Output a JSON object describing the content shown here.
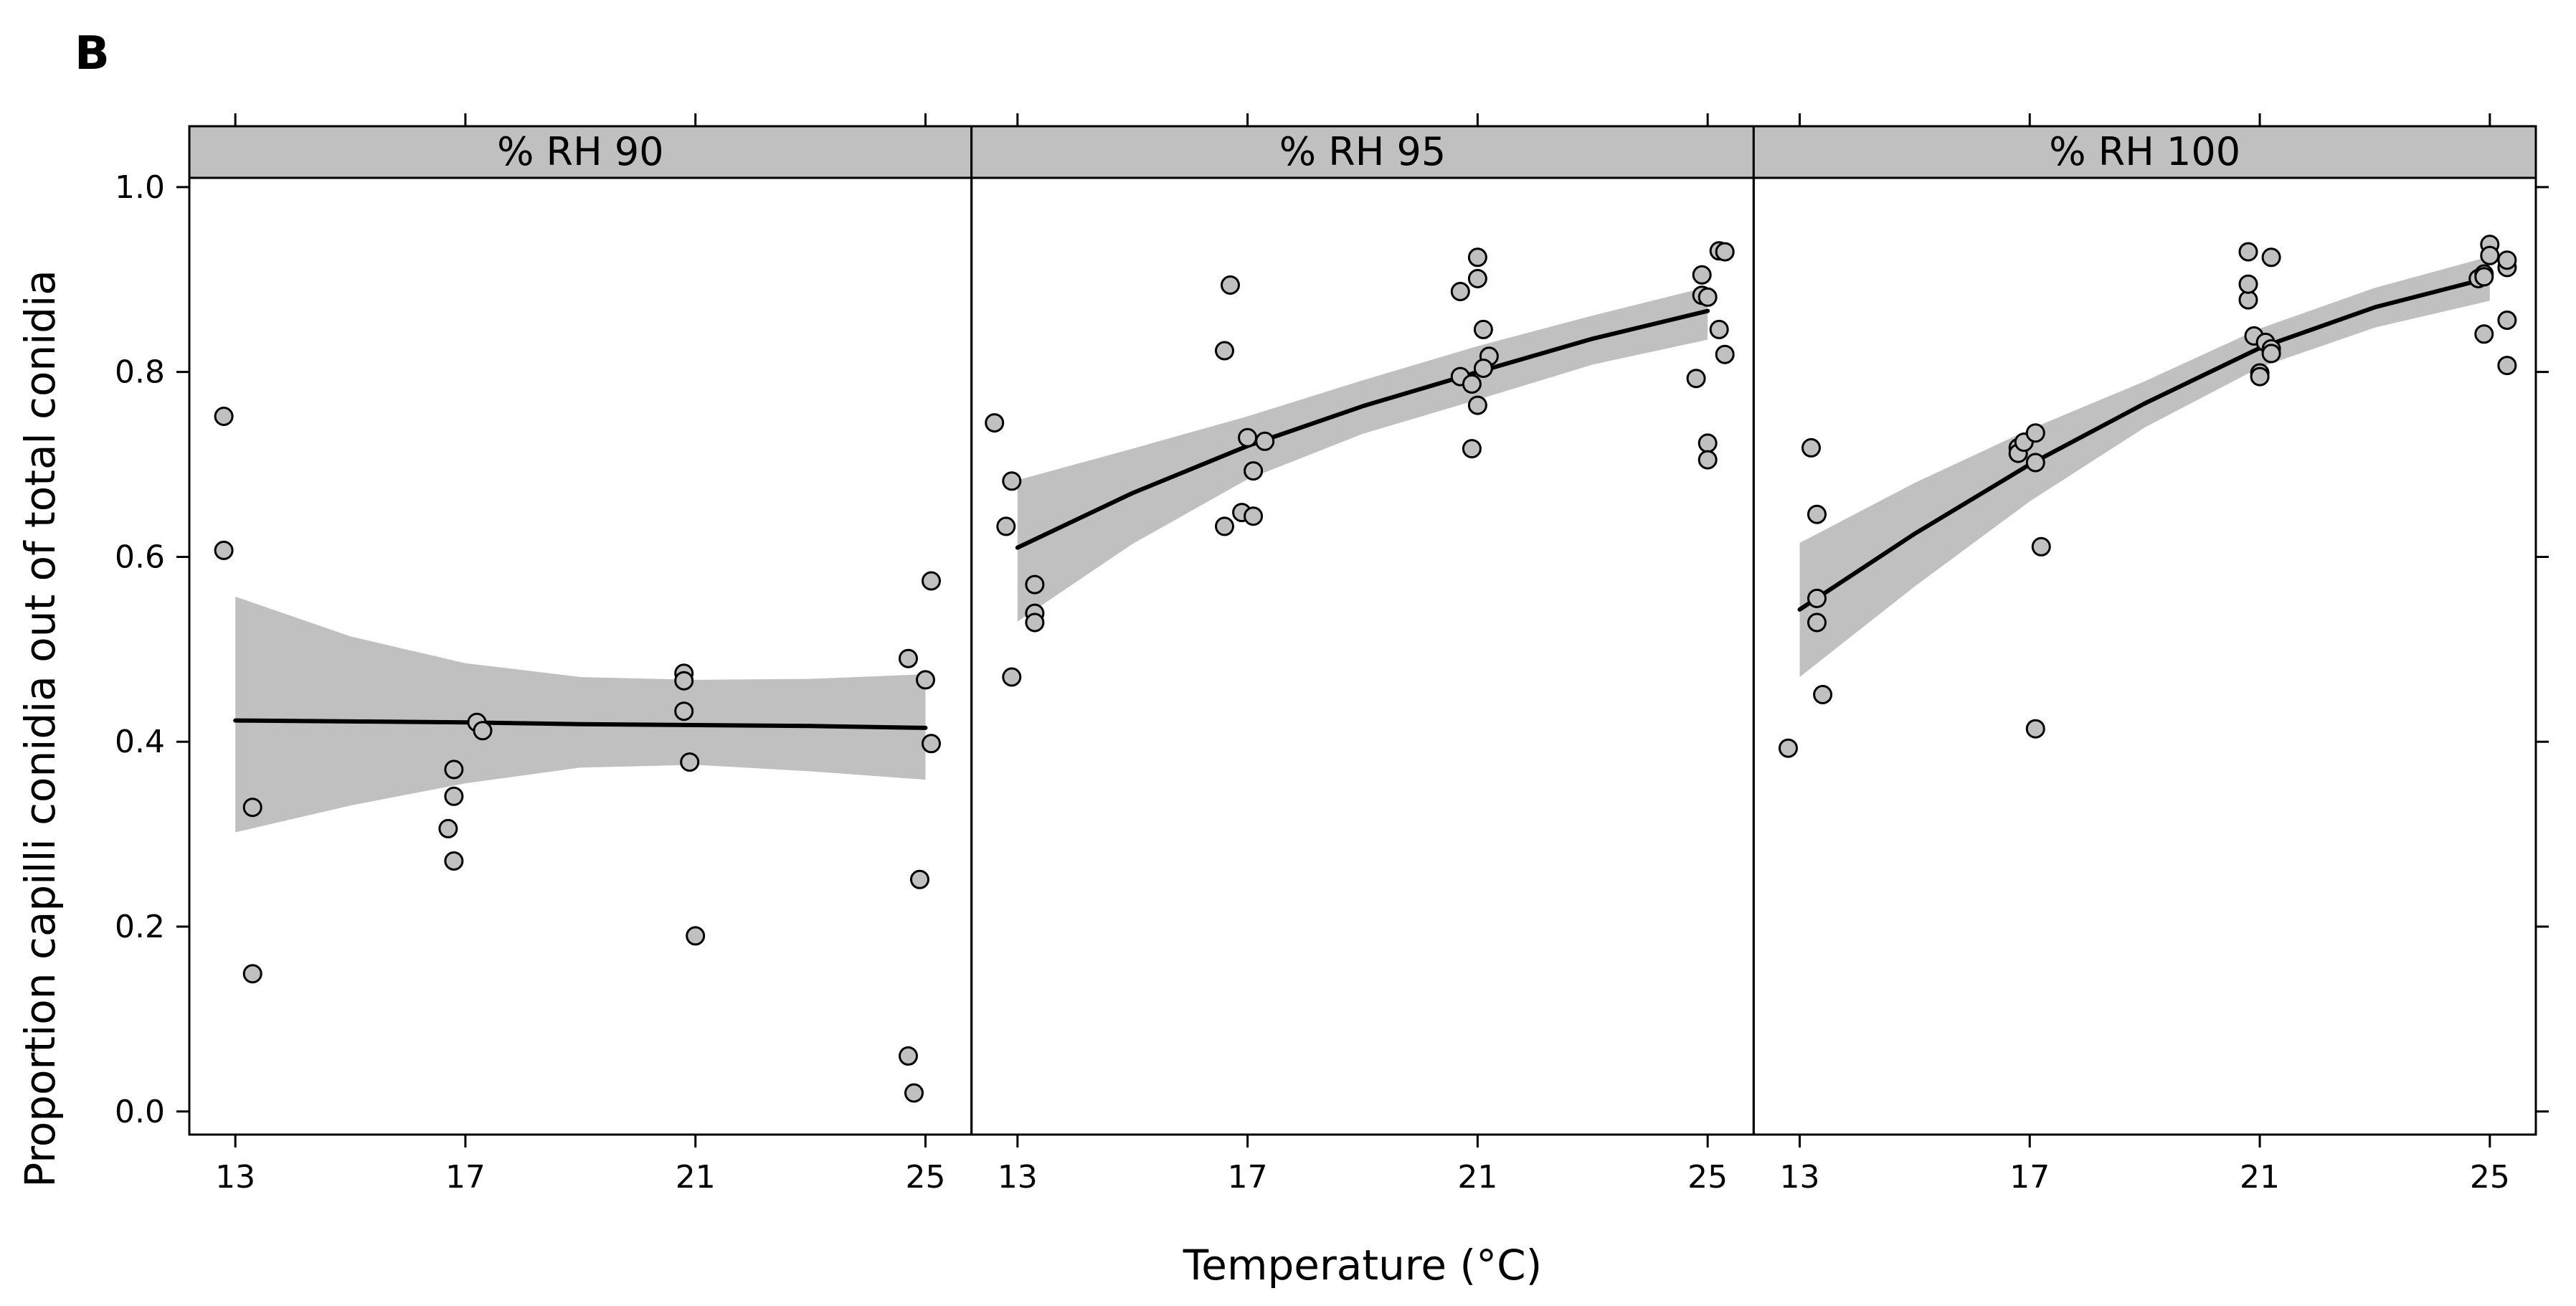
{
  "panel_label": "B",
  "chart_data": {
    "type": "scatter",
    "title": "",
    "xlabel": "Temperature (°C)",
    "ylabel": "Proportion capilli conidia out of total conidia",
    "xlim": [
      12.2,
      25.8
    ],
    "ylim": [
      -0.025,
      1.01
    ],
    "x_ticks": [
      13,
      17,
      21,
      25
    ],
    "y_ticks": [
      0.0,
      0.2,
      0.4,
      0.6,
      0.8,
      1.0
    ],
    "y_tick_labels": [
      "0.0",
      "0.2",
      "0.4",
      "0.6",
      "0.8",
      "1.0"
    ],
    "colors": {
      "point_fill": "#c0c0c0",
      "point_stroke": "#000000",
      "band": "#c0c0c0",
      "strip": "#c0c0c0",
      "line": "#000000"
    },
    "panels": [
      {
        "strip": "% RH 90",
        "points": [
          [
            12.8,
            0.752
          ],
          [
            12.8,
            0.607
          ],
          [
            13.3,
            0.329
          ],
          [
            13.3,
            0.149
          ],
          [
            16.7,
            0.306
          ],
          [
            16.8,
            0.37
          ],
          [
            16.8,
            0.341
          ],
          [
            16.8,
            0.271
          ],
          [
            17.2,
            0.421
          ],
          [
            17.3,
            0.412
          ],
          [
            20.8,
            0.474
          ],
          [
            20.8,
            0.466
          ],
          [
            20.8,
            0.433
          ],
          [
            20.9,
            0.378
          ],
          [
            21.0,
            0.19
          ],
          [
            24.7,
            0.49
          ],
          [
            25.0,
            0.467
          ],
          [
            25.1,
            0.574
          ],
          [
            25.1,
            0.398
          ],
          [
            24.9,
            0.251
          ],
          [
            24.7,
            0.06
          ],
          [
            24.8,
            0.02
          ]
        ],
        "fit": [
          [
            13,
            0.423
          ],
          [
            15,
            0.422
          ],
          [
            17,
            0.421
          ],
          [
            19,
            0.419
          ],
          [
            21,
            0.418
          ],
          [
            23,
            0.417
          ],
          [
            25,
            0.415
          ]
        ],
        "band_upper": [
          [
            13,
            0.557
          ],
          [
            15,
            0.514
          ],
          [
            17,
            0.485
          ],
          [
            19,
            0.47
          ],
          [
            21,
            0.467
          ],
          [
            23,
            0.468
          ],
          [
            25,
            0.473
          ]
        ],
        "band_lower": [
          [
            13,
            0.302
          ],
          [
            15,
            0.331
          ],
          [
            17,
            0.355
          ],
          [
            19,
            0.372
          ],
          [
            21,
            0.375
          ],
          [
            23,
            0.368
          ],
          [
            25,
            0.359
          ]
        ]
      },
      {
        "strip": "% RH 95",
        "points": [
          [
            12.6,
            0.745
          ],
          [
            12.8,
            0.633
          ],
          [
            12.9,
            0.682
          ],
          [
            12.9,
            0.47
          ],
          [
            13.3,
            0.57
          ],
          [
            13.3,
            0.539
          ],
          [
            13.3,
            0.529
          ],
          [
            16.6,
            0.823
          ],
          [
            16.7,
            0.894
          ],
          [
            16.6,
            0.633
          ],
          [
            16.9,
            0.648
          ],
          [
            17.0,
            0.729
          ],
          [
            17.1,
            0.693
          ],
          [
            17.1,
            0.644
          ],
          [
            17.3,
            0.725
          ],
          [
            20.7,
            0.887
          ],
          [
            20.7,
            0.795
          ],
          [
            20.9,
            0.787
          ],
          [
            20.9,
            0.717
          ],
          [
            21.0,
            0.924
          ],
          [
            21.0,
            0.901
          ],
          [
            21.0,
            0.764
          ],
          [
            21.1,
            0.846
          ],
          [
            21.2,
            0.817
          ],
          [
            21.1,
            0.804
          ],
          [
            24.8,
            0.793
          ],
          [
            24.9,
            0.883
          ],
          [
            24.9,
            0.905
          ],
          [
            25.0,
            0.881
          ],
          [
            25.0,
            0.723
          ],
          [
            25.0,
            0.705
          ],
          [
            25.2,
            0.931
          ],
          [
            25.3,
            0.93
          ],
          [
            25.2,
            0.846
          ],
          [
            25.3,
            0.819
          ]
        ],
        "fit": [
          [
            13,
            0.61
          ],
          [
            15,
            0.669
          ],
          [
            17,
            0.72
          ],
          [
            19,
            0.763
          ],
          [
            21,
            0.8
          ],
          [
            23,
            0.836
          ],
          [
            25,
            0.866
          ]
        ],
        "band_upper": [
          [
            13,
            0.683
          ],
          [
            15,
            0.717
          ],
          [
            17,
            0.752
          ],
          [
            19,
            0.791
          ],
          [
            21,
            0.828
          ],
          [
            23,
            0.861
          ],
          [
            25,
            0.892
          ]
        ],
        "band_lower": [
          [
            13,
            0.53
          ],
          [
            15,
            0.614
          ],
          [
            17,
            0.684
          ],
          [
            19,
            0.733
          ],
          [
            21,
            0.77
          ],
          [
            23,
            0.808
          ],
          [
            25,
            0.835
          ]
        ]
      },
      {
        "strip": "% RH 100",
        "points": [
          [
            12.8,
            0.393
          ],
          [
            13.2,
            0.718
          ],
          [
            13.3,
            0.646
          ],
          [
            13.3,
            0.555
          ],
          [
            13.3,
            0.529
          ],
          [
            13.4,
            0.451
          ],
          [
            16.8,
            0.718
          ],
          [
            16.8,
            0.712
          ],
          [
            16.9,
            0.724
          ],
          [
            17.1,
            0.734
          ],
          [
            17.1,
            0.702
          ],
          [
            17.2,
            0.611
          ],
          [
            17.1,
            0.414
          ],
          [
            20.8,
            0.93
          ],
          [
            20.8,
            0.878
          ],
          [
            20.8,
            0.895
          ],
          [
            20.9,
            0.839
          ],
          [
            21.0,
            0.799
          ],
          [
            21.0,
            0.795
          ],
          [
            21.1,
            0.832
          ],
          [
            21.2,
            0.924
          ],
          [
            21.2,
            0.825
          ],
          [
            21.2,
            0.82
          ],
          [
            24.8,
            0.901
          ],
          [
            24.9,
            0.906
          ],
          [
            25.0,
            0.938
          ],
          [
            25.0,
            0.926
          ],
          [
            24.9,
            0.903
          ],
          [
            24.9,
            0.841
          ],
          [
            25.3,
            0.913
          ],
          [
            25.3,
            0.921
          ],
          [
            25.3,
            0.856
          ],
          [
            25.3,
            0.807
          ]
        ],
        "fit": [
          [
            13,
            0.543
          ],
          [
            15,
            0.625
          ],
          [
            17,
            0.7
          ],
          [
            19,
            0.766
          ],
          [
            21,
            0.826
          ],
          [
            23,
            0.87
          ],
          [
            25,
            0.902
          ]
        ],
        "band_upper": [
          [
            13,
            0.615
          ],
          [
            15,
            0.68
          ],
          [
            17,
            0.738
          ],
          [
            19,
            0.79
          ],
          [
            21,
            0.847
          ],
          [
            23,
            0.891
          ],
          [
            25,
            0.925
          ]
        ],
        "band_lower": [
          [
            13,
            0.47
          ],
          [
            15,
            0.568
          ],
          [
            17,
            0.66
          ],
          [
            19,
            0.74
          ],
          [
            21,
            0.805
          ],
          [
            23,
            0.848
          ],
          [
            25,
            0.877
          ]
        ]
      }
    ]
  }
}
